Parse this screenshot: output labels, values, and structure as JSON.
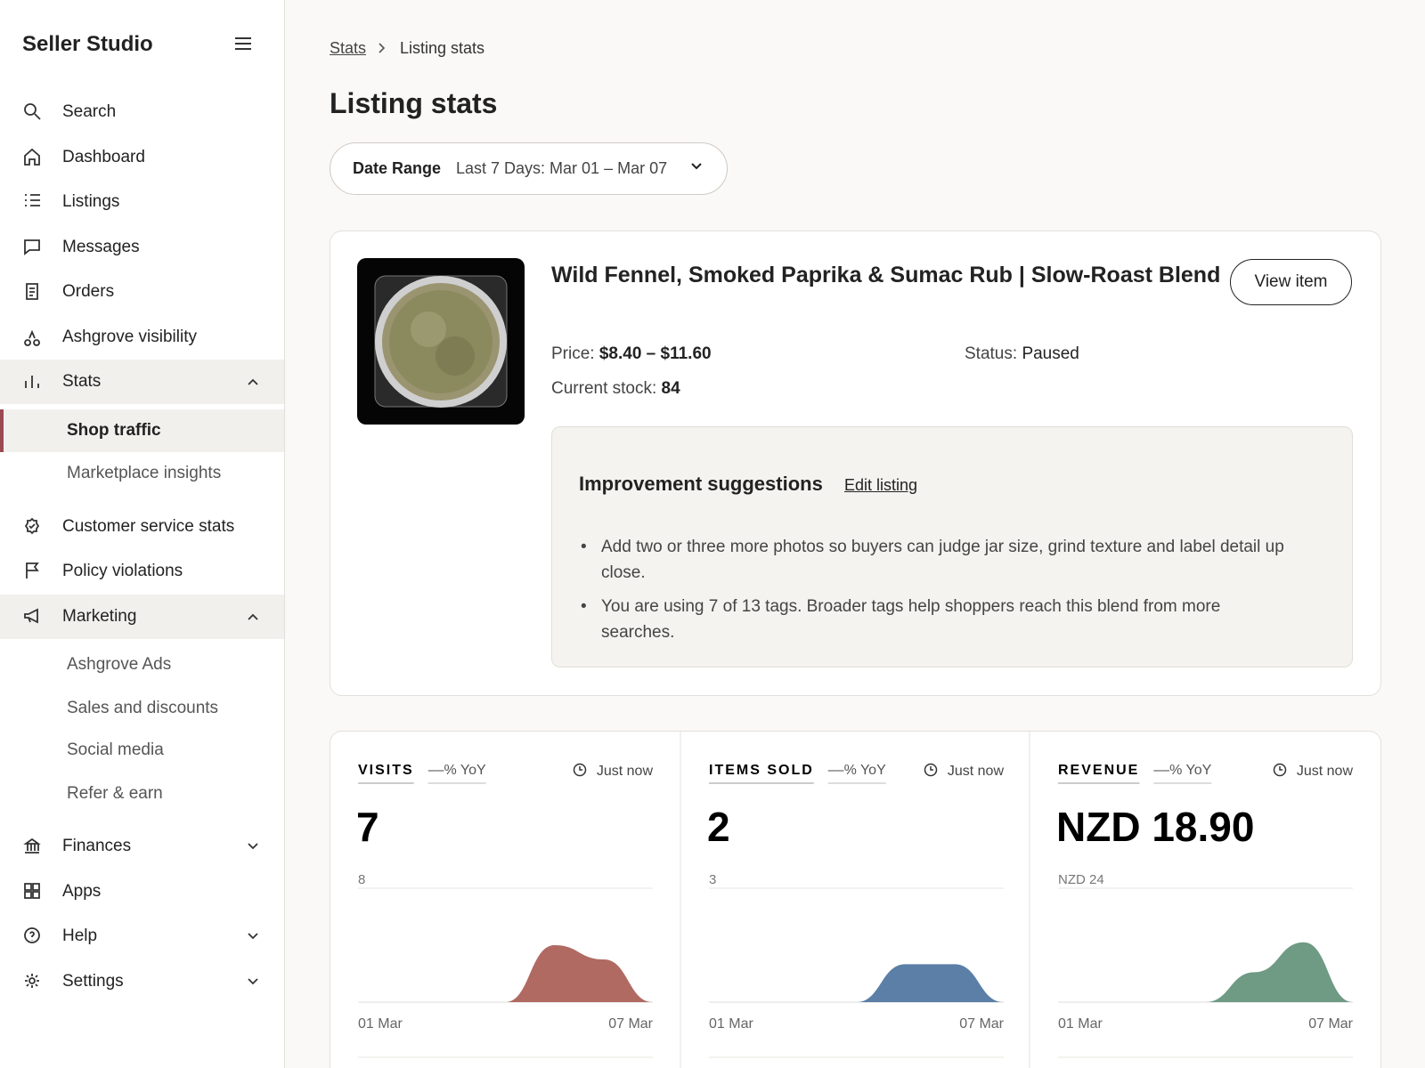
{
  "sidebar": {
    "brand": "Seller Studio",
    "items": [
      {
        "label": "Search"
      },
      {
        "label": "Dashboard"
      },
      {
        "label": "Listings"
      },
      {
        "label": "Messages"
      },
      {
        "label": "Orders"
      },
      {
        "label": "Ashgrove visibility"
      },
      {
        "label": "Stats",
        "children": [
          "Shop traffic",
          "Marketplace insights"
        ]
      },
      {
        "label": "Customer service stats"
      },
      {
        "label": "Policy violations"
      },
      {
        "label": "Marketing",
        "children": [
          "Ashgrove Ads",
          "Sales and discounts",
          "Social media",
          "Refer & earn"
        ]
      },
      {
        "label": "Finances"
      },
      {
        "label": "Apps"
      },
      {
        "label": "Help"
      },
      {
        "label": "Settings"
      }
    ]
  },
  "breadcrumb": [
    "Stats",
    "Listing stats"
  ],
  "header": {
    "title": "Listing stats"
  },
  "date_range": {
    "label": "Date Range",
    "value": "Last 7 Days: Mar 01 – Mar 07"
  },
  "listing": {
    "title": "Wild Fennel, Smoked Paprika & Sumac Rub | Slow-Roast Blend",
    "button": "View item",
    "price_label": "Price:",
    "price": "$8.40 – $11.60",
    "status_label": "Status:",
    "status": "Paused",
    "stock_label": "Current stock:",
    "stock": "84"
  },
  "suggestions": {
    "title": "Improvement suggestions",
    "link": "Edit listing",
    "items": [
      "Add two or three more photos so buyers can judge jar size, grind texture and label detail up close.",
      "You are using 7 of 13 tags. Broader tags help shoppers reach this blend from more searches."
    ]
  },
  "chart_data": [
    {
      "type": "area",
      "title": "VISITS",
      "subtitle": "––% YoY",
      "note": "Just now",
      "headline": "7",
      "categories": [
        "01 Mar",
        null,
        null,
        null,
        null,
        null,
        "07 Mar"
      ],
      "values": [
        0,
        0,
        0,
        0,
        4,
        3,
        0
      ],
      "color": "#b06a62",
      "ylim": [
        0,
        8
      ],
      "yticks": [
        8
      ]
    },
    {
      "type": "area",
      "title": "ITEMS SOLD",
      "subtitle": "––% YoY",
      "note": "Just now",
      "headline": "2",
      "categories": [
        "01 Mar",
        null,
        null,
        null,
        null,
        null,
        "07 Mar"
      ],
      "values": [
        0,
        0,
        0,
        0,
        1,
        1,
        0
      ],
      "color": "#5b7fa6",
      "ylim": [
        0,
        3
      ],
      "yticks": [
        3
      ]
    },
    {
      "type": "area",
      "title": "REVENUE",
      "subtitle": "––% YoY",
      "note": "Just now",
      "headline": "NZD 18.90",
      "categories": [
        "01 Mar",
        null,
        null,
        null,
        null,
        null,
        "07 Mar"
      ],
      "values": [
        0,
        0,
        0,
        0,
        6.3,
        12.6,
        0
      ],
      "color": "#6f9a84",
      "ylim": [
        0,
        24
      ],
      "yticks": [
        {
          "value": 24,
          "label": "NZD 24"
        }
      ]
    }
  ]
}
